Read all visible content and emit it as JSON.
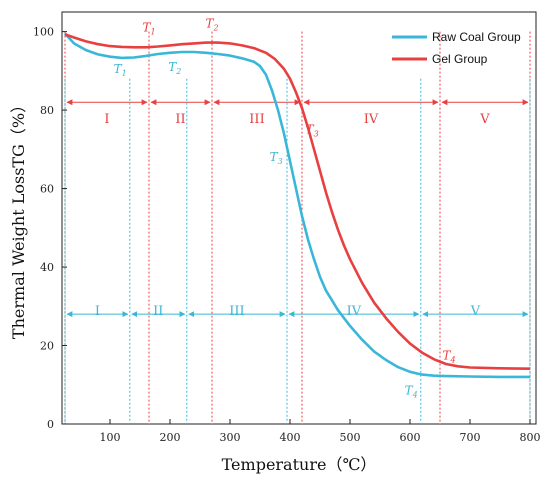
{
  "chart_data": {
    "type": "line",
    "xlabel": "Temperature（℃）",
    "ylabel": "Thermal Weight LossTG（%）",
    "xlim": [
      20,
      810
    ],
    "ylim": [
      0,
      105
    ],
    "xticks": [
      100,
      200,
      300,
      400,
      500,
      600,
      700,
      800
    ],
    "yticks": [
      0,
      20,
      40,
      60,
      80,
      100
    ],
    "legend_position": "top-right",
    "grid": false,
    "series": [
      {
        "name": "Raw Coal Group",
        "color": "#3ab7d8",
        "points": [
          [
            25,
            99.5
          ],
          [
            40,
            97
          ],
          [
            60,
            95.3
          ],
          [
            80,
            94.2
          ],
          [
            100,
            93.6
          ],
          [
            120,
            93.3
          ],
          [
            140,
            93.4
          ],
          [
            160,
            93.8
          ],
          [
            180,
            94.3
          ],
          [
            200,
            94.6
          ],
          [
            220,
            94.8
          ],
          [
            240,
            94.8
          ],
          [
            260,
            94.6
          ],
          [
            280,
            94.3
          ],
          [
            300,
            93.9
          ],
          [
            320,
            93.2
          ],
          [
            340,
            92.3
          ],
          [
            350,
            91.2
          ],
          [
            360,
            89
          ],
          [
            370,
            85
          ],
          [
            380,
            80
          ],
          [
            390,
            74
          ],
          [
            400,
            67
          ],
          [
            410,
            60
          ],
          [
            420,
            53
          ],
          [
            430,
            47
          ],
          [
            440,
            42
          ],
          [
            450,
            37.5
          ],
          [
            460,
            34
          ],
          [
            480,
            29
          ],
          [
            500,
            25
          ],
          [
            520,
            21.5
          ],
          [
            540,
            18.5
          ],
          [
            560,
            16.3
          ],
          [
            580,
            14.5
          ],
          [
            600,
            13.3
          ],
          [
            620,
            12.6
          ],
          [
            640,
            12.3
          ],
          [
            660,
            12.2
          ],
          [
            700,
            12.1
          ],
          [
            750,
            12
          ],
          [
            800,
            12
          ]
        ]
      },
      {
        "name": "Gel Group",
        "color": "#e84040",
        "points": [
          [
            25,
            99.3
          ],
          [
            40,
            98.5
          ],
          [
            60,
            97.5
          ],
          [
            80,
            96.8
          ],
          [
            100,
            96.3
          ],
          [
            120,
            96.1
          ],
          [
            140,
            96
          ],
          [
            160,
            96
          ],
          [
            180,
            96.2
          ],
          [
            200,
            96.5
          ],
          [
            220,
            96.8
          ],
          [
            240,
            97
          ],
          [
            260,
            97.2
          ],
          [
            280,
            97.2
          ],
          [
            300,
            97
          ],
          [
            320,
            96.5
          ],
          [
            340,
            95.8
          ],
          [
            360,
            94.6
          ],
          [
            375,
            93
          ],
          [
            390,
            90.5
          ],
          [
            400,
            88
          ],
          [
            410,
            84.5
          ],
          [
            420,
            80.5
          ],
          [
            430,
            75.5
          ],
          [
            440,
            70
          ],
          [
            450,
            64.5
          ],
          [
            460,
            59
          ],
          [
            470,
            54
          ],
          [
            480,
            49.5
          ],
          [
            490,
            45.5
          ],
          [
            500,
            42
          ],
          [
            520,
            36
          ],
          [
            540,
            31
          ],
          [
            560,
            27
          ],
          [
            580,
            23.5
          ],
          [
            600,
            20.5
          ],
          [
            620,
            18.2
          ],
          [
            640,
            16.5
          ],
          [
            660,
            15.3
          ],
          [
            680,
            14.7
          ],
          [
            700,
            14.4
          ],
          [
            750,
            14.2
          ],
          [
            800,
            14.1
          ]
        ]
      }
    ],
    "annotations": {
      "gel": {
        "color": "#e84040",
        "arrow_y": 82,
        "boundaries": [
          25,
          165,
          270,
          420,
          650,
          800
        ],
        "stages": [
          "I",
          "II",
          "III",
          "IV",
          "V"
        ],
        "stage_label_y": 78,
        "temps": [
          {
            "label": "T",
            "sub": "1",
            "x": 165,
            "label_x": 165,
            "label_y": 100
          },
          {
            "label": "T",
            "sub": "2",
            "x": 270,
            "label_x": 270,
            "label_y": 101
          },
          {
            "label": "T",
            "sub": "3",
            "x": 420,
            "label_x": 437,
            "label_y": 74
          },
          {
            "label": "T",
            "sub": "4",
            "x": 650,
            "label_x": 665,
            "label_y": 16.5
          }
        ]
      },
      "raw": {
        "color": "#3ab7d8",
        "arrow_y": 28,
        "boundaries": [
          25,
          133,
          228,
          395,
          618,
          800
        ],
        "stages": [
          "I",
          "II",
          "III",
          "IV",
          "V"
        ],
        "stage_label_y": 29,
        "temps": [
          {
            "label": "T",
            "sub": "1",
            "x": 133,
            "label_x": 117,
            "label_y": 89.5
          },
          {
            "label": "T",
            "sub": "2",
            "x": 228,
            "label_x": 208,
            "label_y": 90
          },
          {
            "label": "T",
            "sub": "3",
            "x": 395,
            "label_x": 377,
            "label_y": 67
          },
          {
            "label": "T",
            "sub": "4",
            "x": 618,
            "label_x": 602,
            "label_y": 7.5
          }
        ]
      }
    }
  }
}
